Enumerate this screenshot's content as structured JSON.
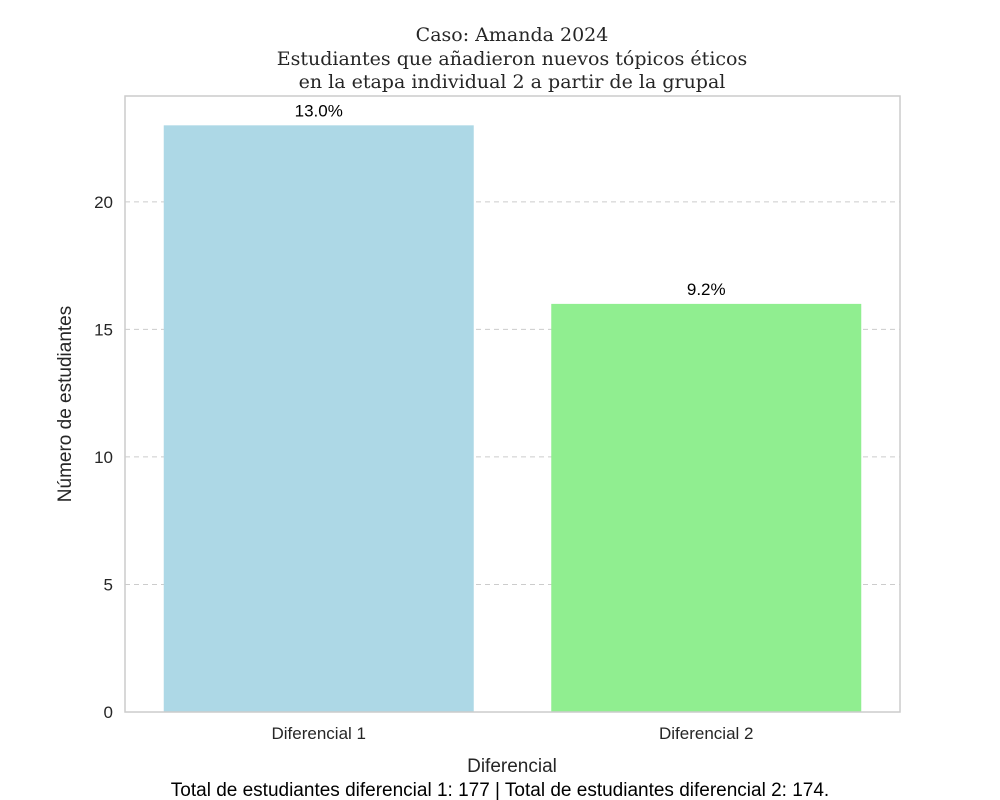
{
  "chart_data": {
    "type": "bar",
    "title_lines": [
      "Caso: Amanda 2024",
      "Estudiantes que añadieron nuevos tópicos éticos",
      "en la etapa individual 2 a partir de la grupal"
    ],
    "categories": [
      "Diferencial 1",
      "Diferencial 2"
    ],
    "values": [
      23,
      16
    ],
    "value_labels": [
      "13.0%",
      "9.2%"
    ],
    "colors": [
      "#add8e6",
      "#90ee90"
    ],
    "xlabel": "Diferencial",
    "ylabel": "Número de estudiantes",
    "ylim": [
      0,
      24.15
    ],
    "yticks": [
      0,
      5,
      10,
      15,
      20
    ],
    "grid": "horizontal-dashed",
    "footnote": "Total de estudiantes diferencial 1: 177 | Total de estudiantes diferencial 2: 174."
  }
}
